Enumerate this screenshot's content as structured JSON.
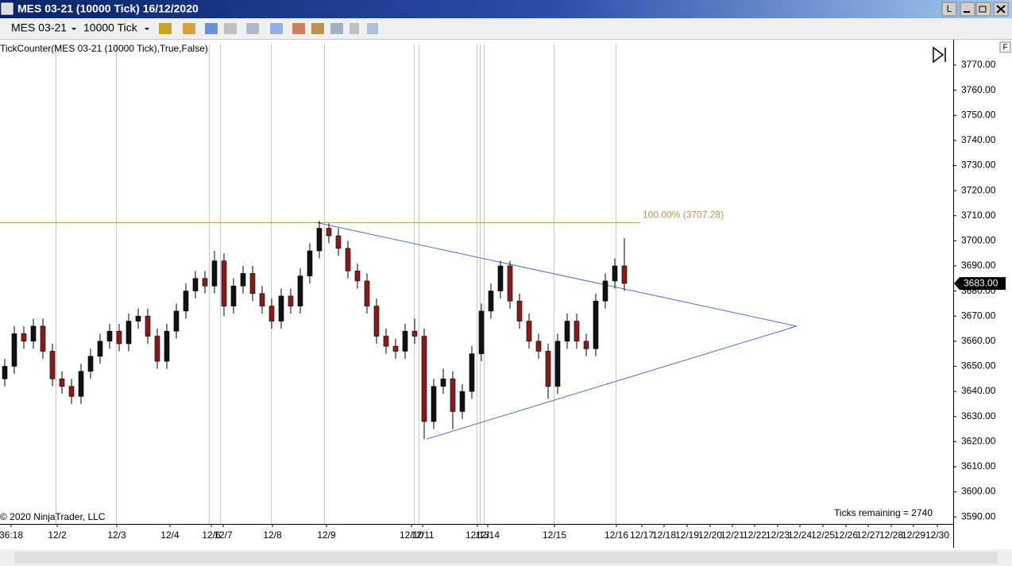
{
  "window": {
    "title": "MES 03-21 (10000 Tick)  16/12/2020",
    "button_l": "L",
    "instrument": "MES 03-21",
    "interval": "10000 Tick",
    "indicator": "TickCounter(MES  03-21  (10000  Tick),True,False)",
    "copyright": "© 2020 NinjaTrader, LLC",
    "ticks_remaining": "Ticks remaining = 2740",
    "panel_button": "F"
  },
  "chart_data": {
    "type": "candlestick",
    "up_color": "#111111",
    "down_color": "#8b1a1a",
    "ylim": [
      3587.2,
      3779.5
    ],
    "yticks": [
      {
        "value": 3590,
        "label": "3590.00"
      },
      {
        "value": 3600,
        "label": "3600.00"
      },
      {
        "value": 3610,
        "label": "3610.00"
      },
      {
        "value": 3620,
        "label": "3620.00"
      },
      {
        "value": 3630,
        "label": "3630.00"
      },
      {
        "value": 3640,
        "label": "3640.00"
      },
      {
        "value": 3650,
        "label": "3650.00"
      },
      {
        "value": 3660,
        "label": "3660.00"
      },
      {
        "value": 3670,
        "label": "3670.00"
      },
      {
        "value": 3680,
        "label": "3680.00"
      },
      {
        "value": 3690,
        "label": "3690.00"
      },
      {
        "value": 3700,
        "label": "3700.00"
      },
      {
        "value": 3710,
        "label": "3710.00"
      },
      {
        "value": 3720,
        "label": "3720.00"
      },
      {
        "value": 3730,
        "label": "3730.00"
      },
      {
        "value": 3740,
        "label": "3740.00"
      },
      {
        "value": 3750,
        "label": "3750.00"
      },
      {
        "value": 3760,
        "label": "3760.00"
      },
      {
        "value": 3770,
        "label": "3770.00"
      }
    ],
    "categories": [
      "36:18",
      "12/2",
      "12/3",
      "12/4",
      "12/6",
      "12/7",
      "12/8",
      "12/9",
      "12/10",
      "12/11",
      "12/13",
      "12/14",
      "12/15",
      "12/16",
      "12/17",
      "12/18",
      "12/19",
      "12/20",
      "12/21",
      "12/22",
      "12/23",
      "12/24",
      "12/25",
      "12/26",
      "12/27",
      "12/28",
      "12/29",
      "12/30"
    ],
    "open": [
      3645,
      3650,
      3663,
      3660,
      3666,
      3656,
      3645,
      3642,
      3638,
      3648,
      3654,
      3660,
      3664,
      3659,
      3668,
      3670,
      3662,
      3652,
      3664,
      3672,
      3680,
      3685,
      3682,
      3692,
      3674,
      3682,
      3687,
      3679,
      3674,
      3668,
      3678,
      3674,
      3686,
      3696,
      3705,
      3702,
      3697,
      3688,
      3684,
      3674,
      3662,
      3658,
      3656,
      3664,
      3662,
      3628,
      3642,
      3645,
      3632,
      3640,
      3655,
      3672,
      3680,
      3690,
      3676,
      3668,
      3660,
      3656,
      3642,
      3660,
      3668,
      3660,
      3657,
      3676,
      3684,
      3690
    ],
    "high": [
      3653,
      3666,
      3666,
      3669,
      3669,
      3659,
      3648,
      3645,
      3651,
      3657,
      3663,
      3667,
      3667,
      3671,
      3673,
      3673,
      3665,
      3667,
      3675,
      3683,
      3688,
      3688,
      3696,
      3695,
      3685,
      3690,
      3690,
      3682,
      3677,
      3681,
      3681,
      3689,
      3699,
      3708,
      3707,
      3705,
      3700,
      3691,
      3687,
      3677,
      3665,
      3661,
      3667,
      3669,
      3665,
      3645,
      3649,
      3648,
      3643,
      3658,
      3675,
      3683,
      3692,
      3692,
      3679,
      3671,
      3663,
      3659,
      3663,
      3671,
      3671,
      3663,
      3679,
      3687,
      3693,
      3701
    ],
    "low": [
      3642,
      3647,
      3657,
      3657,
      3653,
      3642,
      3639,
      3635,
      3635,
      3645,
      3651,
      3657,
      3656,
      3656,
      3665,
      3659,
      3649,
      3649,
      3661,
      3669,
      3677,
      3679,
      3679,
      3670,
      3671,
      3679,
      3676,
      3671,
      3665,
      3665,
      3671,
      3671,
      3683,
      3693,
      3699,
      3694,
      3685,
      3681,
      3671,
      3659,
      3655,
      3653,
      3653,
      3659,
      3621,
      3625,
      3639,
      3625,
      3629,
      3637,
      3652,
      3669,
      3677,
      3673,
      3665,
      3657,
      3653,
      3637,
      3639,
      3657,
      3657,
      3654,
      3654,
      3673,
      3681,
      3680
    ],
    "close": [
      3650,
      3663,
      3660,
      3666,
      3656,
      3645,
      3642,
      3638,
      3648,
      3654,
      3660,
      3664,
      3659,
      3668,
      3670,
      3662,
      3652,
      3664,
      3672,
      3680,
      3685,
      3682,
      3692,
      3674,
      3682,
      3687,
      3679,
      3674,
      3668,
      3678,
      3674,
      3686,
      3696,
      3705,
      3702,
      3697,
      3688,
      3684,
      3674,
      3662,
      3658,
      3656,
      3664,
      3662,
      3628,
      3642,
      3645,
      3632,
      3640,
      3655,
      3672,
      3680,
      3690,
      3676,
      3668,
      3660,
      3656,
      3642,
      3660,
      3668,
      3660,
      3657,
      3676,
      3684,
      3690,
      3683
    ],
    "fib_level": {
      "value": 3707.28,
      "label": "100.00% (3707.28)"
    },
    "last_price": {
      "value": 3683,
      "label": "3683.00"
    },
    "trendlines": [
      {
        "start": 3707.3,
        "end": 3666,
        "color": "#4a6fd8"
      },
      {
        "start": 3621,
        "end": 3666,
        "color": "#4a6fd8"
      }
    ]
  }
}
